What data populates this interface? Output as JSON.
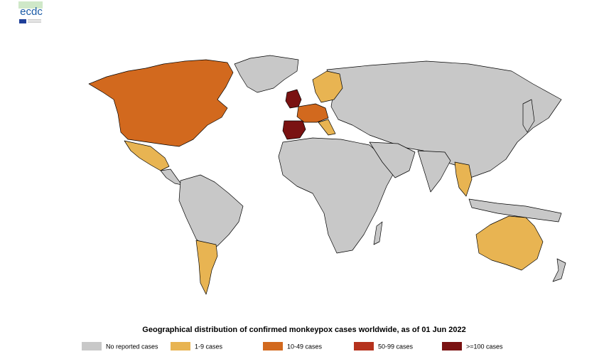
{
  "logo": {
    "text": "ecdc"
  },
  "caption": "Geographical distribution of confirmed monkeypox cases worldwide, as of 01 Jun 2022",
  "legend": [
    {
      "label": "No reported cases",
      "color": "#c8c8c8"
    },
    {
      "label": "1-9 cases",
      "color": "#e8b452"
    },
    {
      "label": "10-49 cases",
      "color": "#d2691e"
    },
    {
      "label": "50-99 cases",
      "color": "#b5321d"
    },
    {
      "label": ">=100 cases",
      "color": "#7a1212"
    }
  ]
}
